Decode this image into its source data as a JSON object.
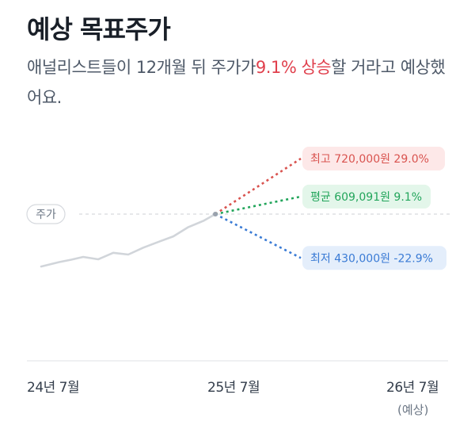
{
  "header": {
    "title": "예상 목표주가",
    "desc_pre": "애널리스트들이 12개월 뒤 주가가",
    "desc_highlight": "9.1% 상승",
    "desc_post": "할 거라고 예상했어요."
  },
  "chart_data": {
    "type": "line",
    "current_label": "주가",
    "x_ticks": [
      "24년 7월",
      "25년 7월",
      "26년 7월"
    ],
    "x_tick_note": "(예상)",
    "history": [
      {
        "t": 0.0,
        "v": 405000
      },
      {
        "t": 0.06,
        "v": 418000
      },
      {
        "t": 0.1,
        "v": 425000
      },
      {
        "t": 0.14,
        "v": 433000
      },
      {
        "t": 0.19,
        "v": 426000
      },
      {
        "t": 0.24,
        "v": 445000
      },
      {
        "t": 0.29,
        "v": 440000
      },
      {
        "t": 0.34,
        "v": 460000
      },
      {
        "t": 0.4,
        "v": 480000
      },
      {
        "t": 0.44,
        "v": 493000
      },
      {
        "t": 0.49,
        "v": 520000
      },
      {
        "t": 0.54,
        "v": 538000
      },
      {
        "t": 0.58,
        "v": 558000
      }
    ],
    "current_price": 558000,
    "targets": [
      {
        "key": "high",
        "label": "최고 720,000원 29.0%",
        "value": 720000,
        "color": "#d9534f",
        "bg": "#fde8e8"
      },
      {
        "key": "avg",
        "label": "평균 609,091원 9.1%",
        "value": 609091,
        "color": "#22a55b",
        "bg": "#e3f6ea"
      },
      {
        "key": "low",
        "label": "최저 430,000원 -22.9%",
        "value": 430000,
        "color": "#3a7bd5",
        "bg": "#e4eefb"
      }
    ]
  }
}
